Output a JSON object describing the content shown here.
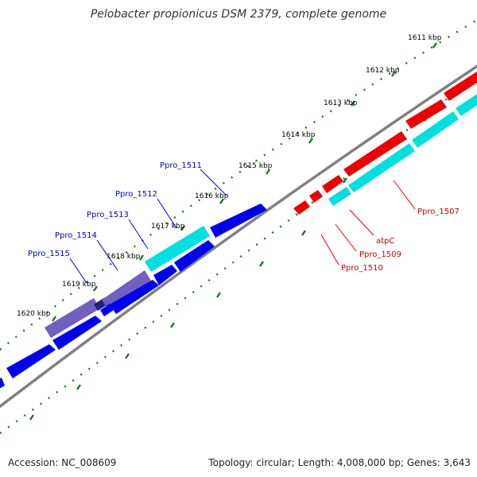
{
  "title": "Pelobacter propionicus DSM 2379, complete genome",
  "footer": {
    "accession_label": "Accession:",
    "accession": "NC_008609",
    "topology_label": "Topology:",
    "topology": "circular",
    "length_label": "Length:",
    "length": "4,008,000 bp",
    "genes_label": "Genes:",
    "genes": "3,643"
  },
  "colors": {
    "backbone": "#808080",
    "tick": "#1a7a1a",
    "forward_cds": "#0000ee",
    "reverse_cds": "#ee0000",
    "gene_feature": "#00e0e0",
    "highlight_feature": "#7060c0",
    "forward_label": "#0000cc",
    "reverse_label": "#cc0000"
  },
  "map": {
    "scale_unit": "kbp",
    "ticks": [
      "1611 kbp",
      "1612 kbp",
      "1613 kbp",
      "1614 kbp",
      "1615 kbp",
      "1616 kbp",
      "1617 kbp",
      "1618 kbp",
      "1619 kbp",
      "1620 kbp"
    ],
    "forward_labels": [
      "Ppro_1511",
      "Ppro_1512",
      "Ppro_1513",
      "Ppro_1514",
      "Ppro_1515"
    ],
    "reverse_labels": [
      "Ppro_1507",
      "atpC",
      "Ppro_1509",
      "Ppro_1510"
    ]
  }
}
